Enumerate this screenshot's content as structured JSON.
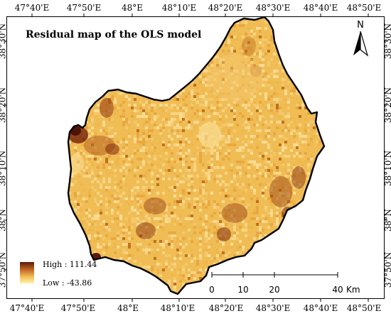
{
  "title": "Residual map of the OLS model",
  "top_ticks": [
    "47°40'E",
    "47°50'E",
    "48°E",
    "48°10'E",
    "48°20'E",
    "48°30'E",
    "48°40'E",
    "48°50'E"
  ],
  "bottom_ticks": [
    "47°40'E",
    "47°50'E",
    "48°E",
    "48°10'E",
    "48°20'E",
    "48°30'E",
    "48°40'E",
    "48°50'E"
  ],
  "left_ticks": [
    "38°30'N",
    "38°20'N",
    "38°10'N",
    "38°N",
    "37°50'N"
  ],
  "right_ticks": [
    "38°30'N",
    "38°20'N",
    "38°10'N",
    "38°N",
    "37°50'N"
  ],
  "north_arrow": {
    "label": "N",
    "icon": "north-arrow-icon"
  },
  "legend": {
    "high_label": "High : 111.44",
    "low_label": "Low : -43.86",
    "high_color": "#5c1a0a",
    "low_color": "#fff1a8"
  },
  "scale_bar": {
    "ticks": [
      "0",
      "10",
      "20",
      "40"
    ],
    "unit": "Km"
  },
  "colors": {
    "region_base": "#f0bd55",
    "region_light": "#f7d483",
    "hotspot_dark": "#7a2a0d",
    "hotspot_mid": "#b05a1c",
    "boundary": "#000000"
  }
}
